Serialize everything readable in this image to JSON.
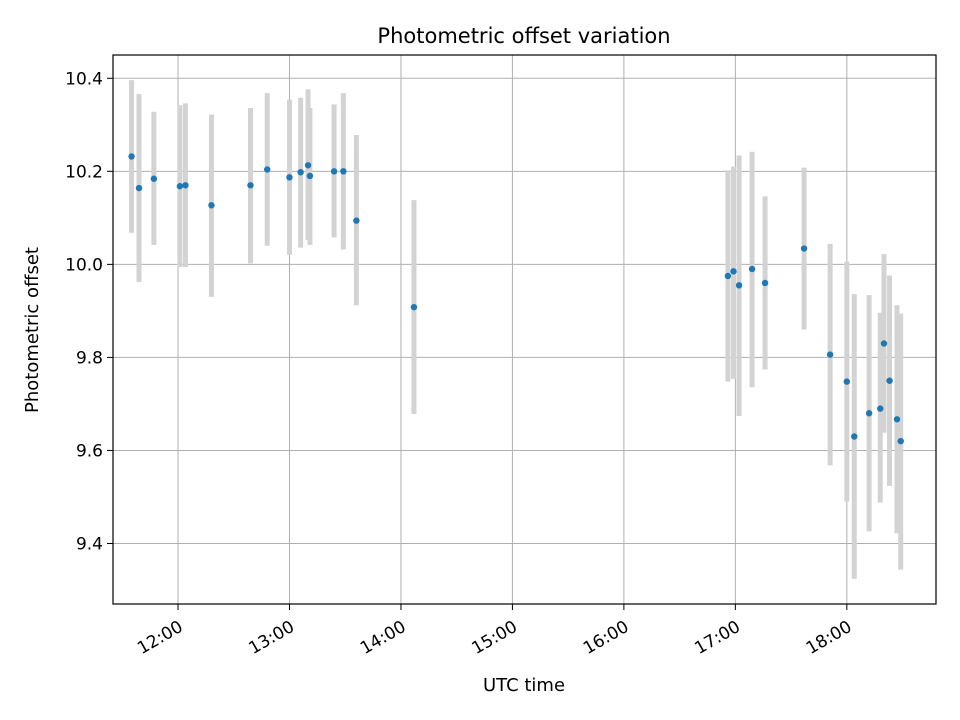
{
  "chart_data": {
    "type": "scatter",
    "title": "Photometric offset variation",
    "xlabel": "UTC time",
    "ylabel": "Photometric offset",
    "xlim": [
      "11:25",
      "18:48"
    ],
    "ylim": [
      9.27,
      10.45
    ],
    "grid": true,
    "x_ticks": [
      "12:00",
      "13:00",
      "14:00",
      "15:00",
      "16:00",
      "17:00",
      "18:00"
    ],
    "y_ticks": [
      "9.4",
      "9.6",
      "9.8",
      "10.0",
      "10.2",
      "10.4"
    ],
    "point_color": "#1f77b4",
    "errorbar_color": "#d3d3d3",
    "points": [
      {
        "x": "11:35",
        "y": 10.232,
        "lo": 10.068,
        "hi": 10.396
      },
      {
        "x": "11:39",
        "y": 10.164,
        "lo": 9.962,
        "hi": 10.366
      },
      {
        "x": "11:47",
        "y": 10.184,
        "lo": 10.042,
        "hi": 10.328
      },
      {
        "x": "12:01",
        "y": 10.168,
        "lo": 9.994,
        "hi": 10.342
      },
      {
        "x": "12:04",
        "y": 10.17,
        "lo": 9.994,
        "hi": 10.346
      },
      {
        "x": "12:18",
        "y": 10.127,
        "lo": 9.93,
        "hi": 10.322
      },
      {
        "x": "12:39",
        "y": 10.17,
        "lo": 10.002,
        "hi": 10.336
      },
      {
        "x": "12:48",
        "y": 10.204,
        "lo": 10.04,
        "hi": 10.368
      },
      {
        "x": "13:00",
        "y": 10.187,
        "lo": 10.02,
        "hi": 10.354
      },
      {
        "x": "13:06",
        "y": 10.198,
        "lo": 10.036,
        "hi": 10.358
      },
      {
        "x": "13:10",
        "y": 10.213,
        "lo": 10.052,
        "hi": 10.376
      },
      {
        "x": "13:11",
        "y": 10.19,
        "lo": 10.042,
        "hi": 10.336
      },
      {
        "x": "13:24",
        "y": 10.2,
        "lo": 10.058,
        "hi": 10.344
      },
      {
        "x": "13:29",
        "y": 10.2,
        "lo": 10.032,
        "hi": 10.368
      },
      {
        "x": "13:36",
        "y": 10.094,
        "lo": 9.912,
        "hi": 10.278
      },
      {
        "x": "14:07",
        "y": 9.908,
        "lo": 9.678,
        "hi": 10.138
      },
      {
        "x": "16:56",
        "y": 9.975,
        "lo": 9.748,
        "hi": 10.202
      },
      {
        "x": "16:59",
        "y": 9.985,
        "lo": 9.754,
        "hi": 10.21
      },
      {
        "x": "17:02",
        "y": 9.955,
        "lo": 9.674,
        "hi": 10.234
      },
      {
        "x": "17:09",
        "y": 9.99,
        "lo": 9.736,
        "hi": 10.242
      },
      {
        "x": "17:16",
        "y": 9.96,
        "lo": 9.774,
        "hi": 10.146
      },
      {
        "x": "17:37",
        "y": 10.034,
        "lo": 9.86,
        "hi": 10.208
      },
      {
        "x": "17:51",
        "y": 9.806,
        "lo": 9.568,
        "hi": 10.044
      },
      {
        "x": "18:00",
        "y": 9.748,
        "lo": 9.49,
        "hi": 10.006
      },
      {
        "x": "18:04",
        "y": 9.63,
        "lo": 9.324,
        "hi": 9.936
      },
      {
        "x": "18:12",
        "y": 9.68,
        "lo": 9.426,
        "hi": 9.934
      },
      {
        "x": "18:18",
        "y": 9.69,
        "lo": 9.488,
        "hi": 9.896
      },
      {
        "x": "18:20",
        "y": 9.83,
        "lo": 9.638,
        "hi": 10.022
      },
      {
        "x": "18:23",
        "y": 9.75,
        "lo": 9.524,
        "hi": 9.976
      },
      {
        "x": "18:27",
        "y": 9.667,
        "lo": 9.422,
        "hi": 9.912
      },
      {
        "x": "18:29",
        "y": 9.62,
        "lo": 9.344,
        "hi": 9.894
      }
    ]
  }
}
